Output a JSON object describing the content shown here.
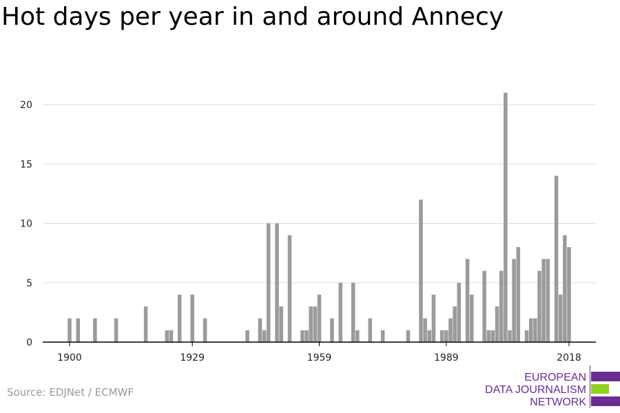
{
  "title": "Hot days per year in and around Annecy",
  "source": "Source: EDJNet / ECMWF",
  "logo": {
    "lines": [
      "EUROPEAN",
      "DATA JOURNALISM",
      "NETWORK"
    ],
    "colors": {
      "purple": "#6b2c91",
      "green": "#8ed11f"
    }
  },
  "colors": {
    "bar": "#9b9b9b",
    "grid": "#dddddd",
    "axis": "#000000"
  },
  "chart_data": {
    "type": "bar",
    "title": "Hot days per year in and around Annecy",
    "xlabel": "",
    "ylabel": "",
    "x": [
      1900,
      1902,
      1906,
      1911,
      1918,
      1923,
      1924,
      1926,
      1929,
      1932,
      1942,
      1945,
      1946,
      1947,
      1949,
      1950,
      1952,
      1955,
      1956,
      1957,
      1958,
      1959,
      1960,
      1962,
      1964,
      1967,
      1968,
      1971,
      1974,
      1980,
      1983,
      1984,
      1985,
      1986,
      1988,
      1989,
      1990,
      1991,
      1992,
      1994,
      1995,
      1998,
      1999,
      2000,
      2001,
      2002,
      2003,
      2004,
      2005,
      2006,
      2008,
      2009,
      2010,
      2011,
      2012,
      2013,
      2015,
      2016,
      2017,
      2018
    ],
    "values": [
      2,
      2,
      2,
      2,
      3,
      1,
      1,
      4,
      4,
      2,
      1,
      2,
      1,
      10,
      10,
      3,
      9,
      1,
      1,
      3,
      3,
      4,
      0,
      2,
      5,
      5,
      1,
      2,
      1,
      1,
      12,
      2,
      1,
      4,
      1,
      1,
      2,
      3,
      5,
      7,
      4,
      6,
      1,
      1,
      3,
      6,
      21,
      1,
      7,
      8,
      1,
      2,
      2,
      6,
      7,
      7,
      14,
      4,
      9,
      8
    ],
    "xlim": [
      1895,
      2024
    ],
    "ylim": [
      0,
      22
    ],
    "xticks": [
      1900,
      1929,
      1959,
      1989,
      2018
    ],
    "yticks": [
      0,
      5,
      10,
      15,
      20
    ],
    "grid": true,
    "legend": "none"
  }
}
